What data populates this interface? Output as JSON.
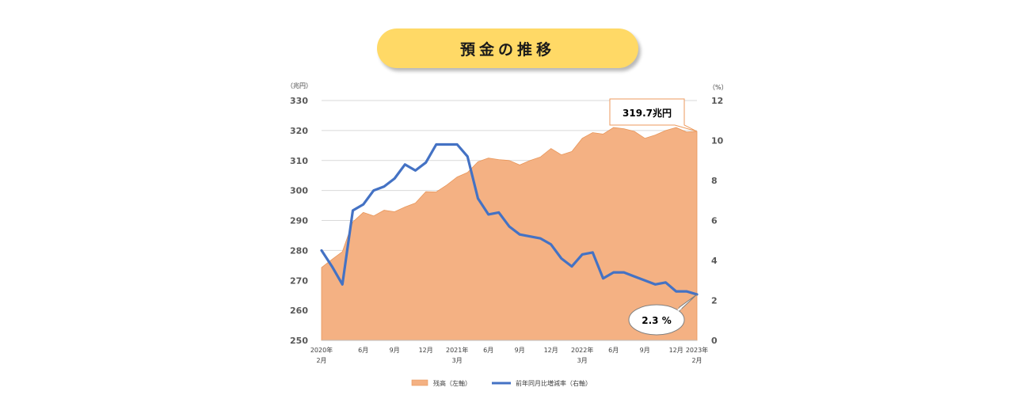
{
  "title": "預金の推移",
  "chart_data": {
    "type": "area+line",
    "title": "預金の推移",
    "left_axis": {
      "unit": "（兆円）",
      "min": 250,
      "max": 330,
      "step": 10,
      "ticks": [
        "250",
        "260",
        "270",
        "280",
        "290",
        "300",
        "310",
        "320",
        "330"
      ]
    },
    "right_axis": {
      "unit": "（%）",
      "min": 0,
      "max": 12,
      "step": 2,
      "ticks": [
        "0",
        "2",
        "4",
        "6",
        "8",
        "10",
        "12"
      ]
    },
    "x_labels": [
      {
        "i": 0,
        "line1": "2020年",
        "line2": "2月"
      },
      {
        "i": 4,
        "line1": "6月",
        "line2": ""
      },
      {
        "i": 7,
        "line1": "9月",
        "line2": ""
      },
      {
        "i": 10,
        "line1": "12月",
        "line2": ""
      },
      {
        "i": 13,
        "line1": "2021年",
        "line2": "3月"
      },
      {
        "i": 16,
        "line1": "6月",
        "line2": ""
      },
      {
        "i": 19,
        "line1": "9月",
        "line2": ""
      },
      {
        "i": 22,
        "line1": "12月",
        "line2": ""
      },
      {
        "i": 25,
        "line1": "2022年",
        "line2": "3月"
      },
      {
        "i": 28,
        "line1": "6月",
        "line2": ""
      },
      {
        "i": 31,
        "line1": "9月",
        "line2": ""
      },
      {
        "i": 34,
        "line1": "12月",
        "line2": ""
      },
      {
        "i": 36,
        "line1": "2023年",
        "line2": "2月"
      }
    ],
    "series": [
      {
        "name": "残高（左軸）",
        "kind": "area",
        "axis": "left",
        "color": "#f4b183",
        "values": [
          274.3,
          277,
          279.6,
          289.5,
          292.7,
          291.5,
          293.4,
          292.9,
          294.5,
          295.8,
          299.6,
          299.5,
          301.8,
          304.5,
          306,
          309.6,
          310.8,
          310.3,
          310,
          308.5,
          310,
          311.2,
          314,
          311.9,
          313,
          317.4,
          319.3,
          318.8,
          321,
          320.6,
          319.7,
          317.4,
          318.5,
          320,
          321,
          319.5,
          319.7
        ]
      },
      {
        "name": "前年同月比増減率（右軸）",
        "kind": "line",
        "axis": "right",
        "color": "#4472c4",
        "values": [
          4.5,
          3.7,
          2.8,
          6.5,
          6.8,
          7.5,
          7.7,
          8.1,
          8.8,
          8.5,
          8.9,
          9.8,
          9.8,
          9.8,
          9.2,
          7.1,
          6.3,
          6.4,
          5.7,
          5.3,
          5.2,
          5.1,
          4.8,
          4.1,
          3.7,
          4.3,
          4.4,
          3.1,
          3.4,
          3.4,
          3.2,
          3.0,
          2.8,
          2.9,
          2.45,
          2.45,
          2.3
        ]
      }
    ],
    "callouts": {
      "balance": "319.7兆円",
      "rate": "2.3 %"
    },
    "grid": true,
    "legend_position": "bottom"
  }
}
